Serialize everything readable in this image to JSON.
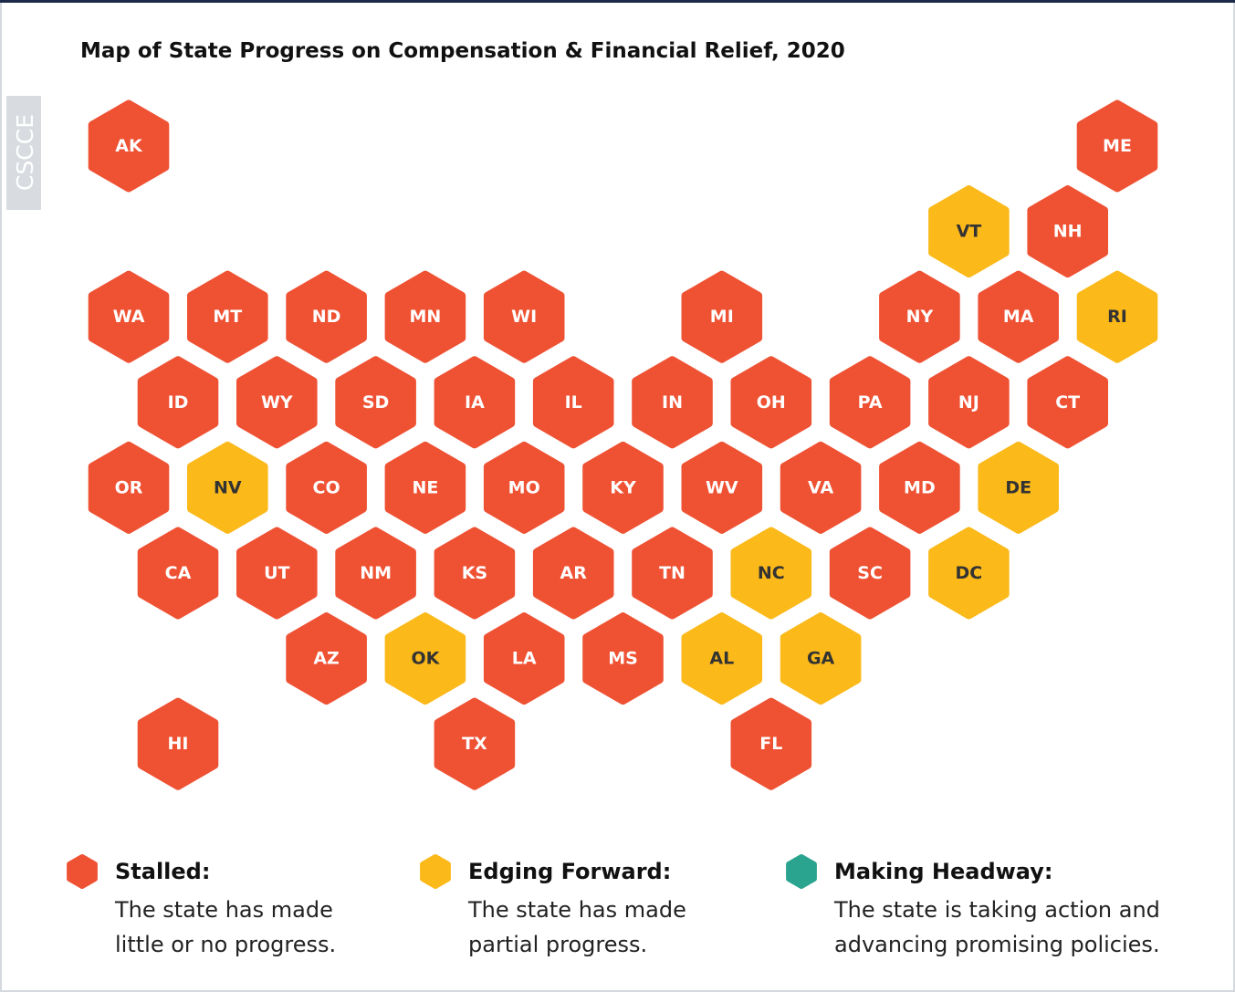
{
  "title": "Map of State Progress on Compensation & Financial Relief, 2020",
  "watermark": "CSCCE",
  "states": [
    {
      "label": "AK",
      "color": "#ef5133"
    },
    {
      "label": "ME",
      "color": "#ef5133"
    },
    {
      "label": "VT",
      "color": "#fbb91a"
    },
    {
      "label": "NH",
      "color": "#ef5133"
    },
    {
      "label": "WA",
      "color": "#ef5133"
    },
    {
      "label": "MT",
      "color": "#ef5133"
    },
    {
      "label": "ND",
      "color": "#ef5133"
    },
    {
      "label": "MN",
      "color": "#ef5133"
    },
    {
      "label": "WI",
      "color": "#ef5133"
    },
    {
      "label": "MI",
      "color": "#ef5133"
    },
    {
      "label": "NY",
      "color": "#ef5133"
    },
    {
      "label": "MA",
      "color": "#ef5133"
    },
    {
      "label": "RI",
      "color": "#fbb91a"
    },
    {
      "label": "ID",
      "color": "#ef5133"
    },
    {
      "label": "WY",
      "color": "#ef5133"
    },
    {
      "label": "SD",
      "color": "#ef5133"
    },
    {
      "label": "IA",
      "color": "#ef5133"
    },
    {
      "label": "IL",
      "color": "#ef5133"
    },
    {
      "label": "IN",
      "color": "#ef5133"
    },
    {
      "label": "OH",
      "color": "#ef5133"
    },
    {
      "label": "PA",
      "color": "#ef5133"
    },
    {
      "label": "NJ",
      "color": "#ef5133"
    },
    {
      "label": "CT",
      "color": "#ef5133"
    },
    {
      "label": "OR",
      "color": "#ef5133"
    },
    {
      "label": "NV",
      "color": "#fbb91a"
    },
    {
      "label": "CO",
      "color": "#ef5133"
    },
    {
      "label": "NE",
      "color": "#ef5133"
    },
    {
      "label": "MO",
      "color": "#ef5133"
    },
    {
      "label": "KY",
      "color": "#ef5133"
    },
    {
      "label": "WV",
      "color": "#ef5133"
    },
    {
      "label": "VA",
      "color": "#ef5133"
    },
    {
      "label": "MD",
      "color": "#ef5133"
    },
    {
      "label": "DE",
      "color": "#fbb91a"
    },
    {
      "label": "CA",
      "color": "#ef5133"
    },
    {
      "label": "UT",
      "color": "#ef5133"
    },
    {
      "label": "NM",
      "color": "#ef5133"
    },
    {
      "label": "KS",
      "color": "#ef5133"
    },
    {
      "label": "AR",
      "color": "#ef5133"
    },
    {
      "label": "TN",
      "color": "#ef5133"
    },
    {
      "label": "NC",
      "color": "#fbb91a"
    },
    {
      "label": "SC",
      "color": "#ef5133"
    },
    {
      "label": "DC",
      "color": "#fbb91a"
    },
    {
      "label": "AZ",
      "color": "#ef5133"
    },
    {
      "label": "OK",
      "color": "#fbb91a"
    },
    {
      "label": "LA",
      "color": "#ef5133"
    },
    {
      "label": "MS",
      "color": "#ef5133"
    },
    {
      "label": "AL",
      "color": "#fbb91a"
    },
    {
      "label": "GA",
      "color": "#fbb91a"
    },
    {
      "label": "HI",
      "color": "#ef5133"
    },
    {
      "label": "TX",
      "color": "#ef5133"
    },
    {
      "label": "FL",
      "color": "#ef5133"
    }
  ],
  "legend": [
    {
      "name": "Stalled:",
      "color": "#ef5133",
      "description": [
        "The state has made",
        "little or no progress."
      ]
    },
    {
      "name": "Edging Forward:",
      "color": "#fbb91a",
      "description": [
        "The state has made",
        "partial progress."
      ]
    },
    {
      "name": "Making Headway:",
      "color": "#2aa38f",
      "description": [
        "The state is taking action and",
        "advancing promising policies."
      ]
    }
  ]
}
